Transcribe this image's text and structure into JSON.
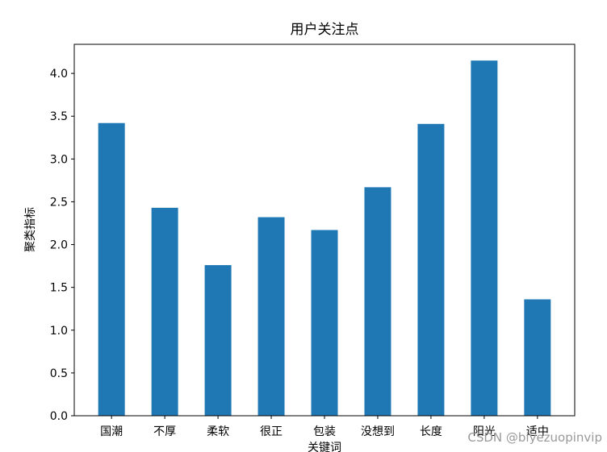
{
  "chart_data": {
    "type": "bar",
    "title": "用户关注点",
    "xlabel": "关键词",
    "ylabel": "聚类指标",
    "categories": [
      "国潮",
      "不厚",
      "柔软",
      "很正",
      "包装",
      "没想到",
      "长度",
      "阳光",
      "适中"
    ],
    "values": [
      3.42,
      2.43,
      1.76,
      2.32,
      2.17,
      2.67,
      3.41,
      4.15,
      1.36
    ],
    "color": "#1f77b4",
    "ylim": [
      0,
      4.34
    ],
    "yticks": [
      {
        "value": 0,
        "label": "0.0"
      },
      {
        "value": 0.5,
        "label": "0.5"
      },
      {
        "value": 1,
        "label": "1.0"
      },
      {
        "value": 1.5,
        "label": "1.5"
      },
      {
        "value": 2,
        "label": "2.0"
      },
      {
        "value": 2.5,
        "label": "2.5"
      },
      {
        "value": 3,
        "label": "3.0"
      },
      {
        "value": 3.5,
        "label": "3.5"
      },
      {
        "value": 4,
        "label": "4.0"
      }
    ],
    "grid": false,
    "watermark": "CSDN @biyezuopinvip"
  }
}
